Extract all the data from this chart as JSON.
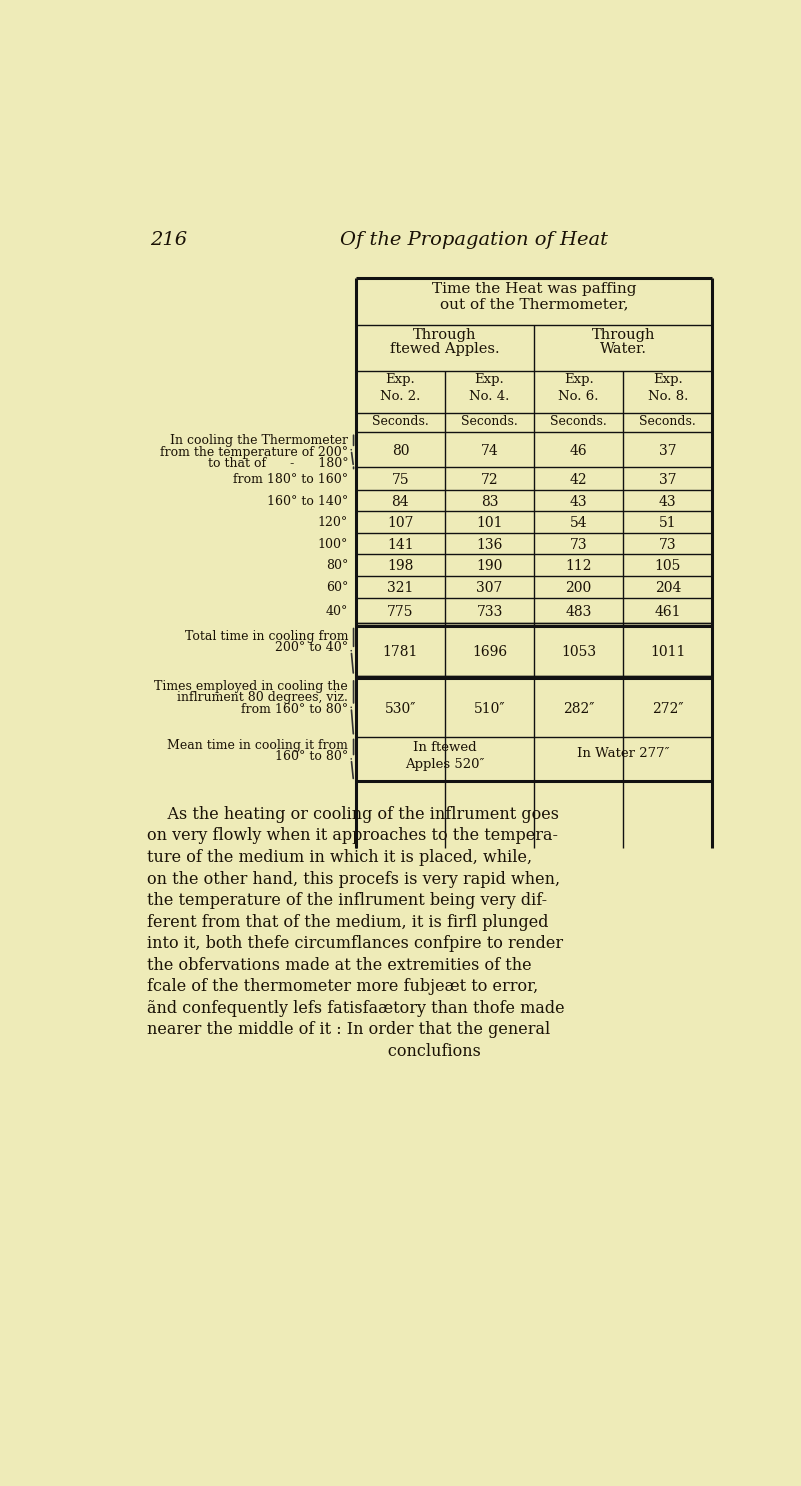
{
  "bg_color": "#eeebb8",
  "page_number": "216",
  "page_title": "Of the Propagation of Heat",
  "table_header1": "Time the Heat was paffing",
  "table_header2": "out of the Thermometer,",
  "col_header_apples1": "Through",
  "col_header_apples2": "ftewed Apples.",
  "col_header_water1": "Through",
  "col_header_water2": "Water.",
  "exp_headers": [
    "Exp.\nNo. 2.",
    "Exp.\nNo. 4.",
    "Exp.\nNo. 6.",
    "Exp.\nNo. 8."
  ],
  "units_row": [
    "Seconds.",
    "Seconds.",
    "Seconds.",
    "Seconds."
  ],
  "data_rows": [
    [
      80,
      74,
      46,
      37
    ],
    [
      75,
      72,
      42,
      37
    ],
    [
      84,
      83,
      43,
      43
    ],
    [
      107,
      101,
      54,
      51
    ],
    [
      141,
      136,
      73,
      73
    ],
    [
      198,
      190,
      112,
      105
    ],
    [
      321,
      307,
      200,
      204
    ],
    [
      775,
      733,
      483,
      461
    ]
  ],
  "total_values": [
    1781,
    1696,
    1053,
    1011
  ],
  "times_values": [
    "530″",
    "510″",
    "282″",
    "272″"
  ],
  "mean_apples": "In ftewed\nApples 520″",
  "mean_water": "In Water 277″",
  "paragraph_lines": [
    "    As the heating or cooling of the inflrument goes",
    "on very flowly when it approaches to the tempera-",
    "ture of the medium in which it is placed, while,",
    "on the other hand, this procefs is very rapid when,",
    "the temperature of the inflrument being very dif-",
    "ferent from that of the medium, it is firfl plunged",
    "into it, both thefe circumflances confpire to render",
    "the obfervations made at the extremities of the",
    "fcale of the thermometer more fubjeæt to error,",
    "ãnd confequently lefs fatisfaætory than thofe made",
    "nearer the middle of it : In order that the general",
    "                                               conclufions"
  ]
}
